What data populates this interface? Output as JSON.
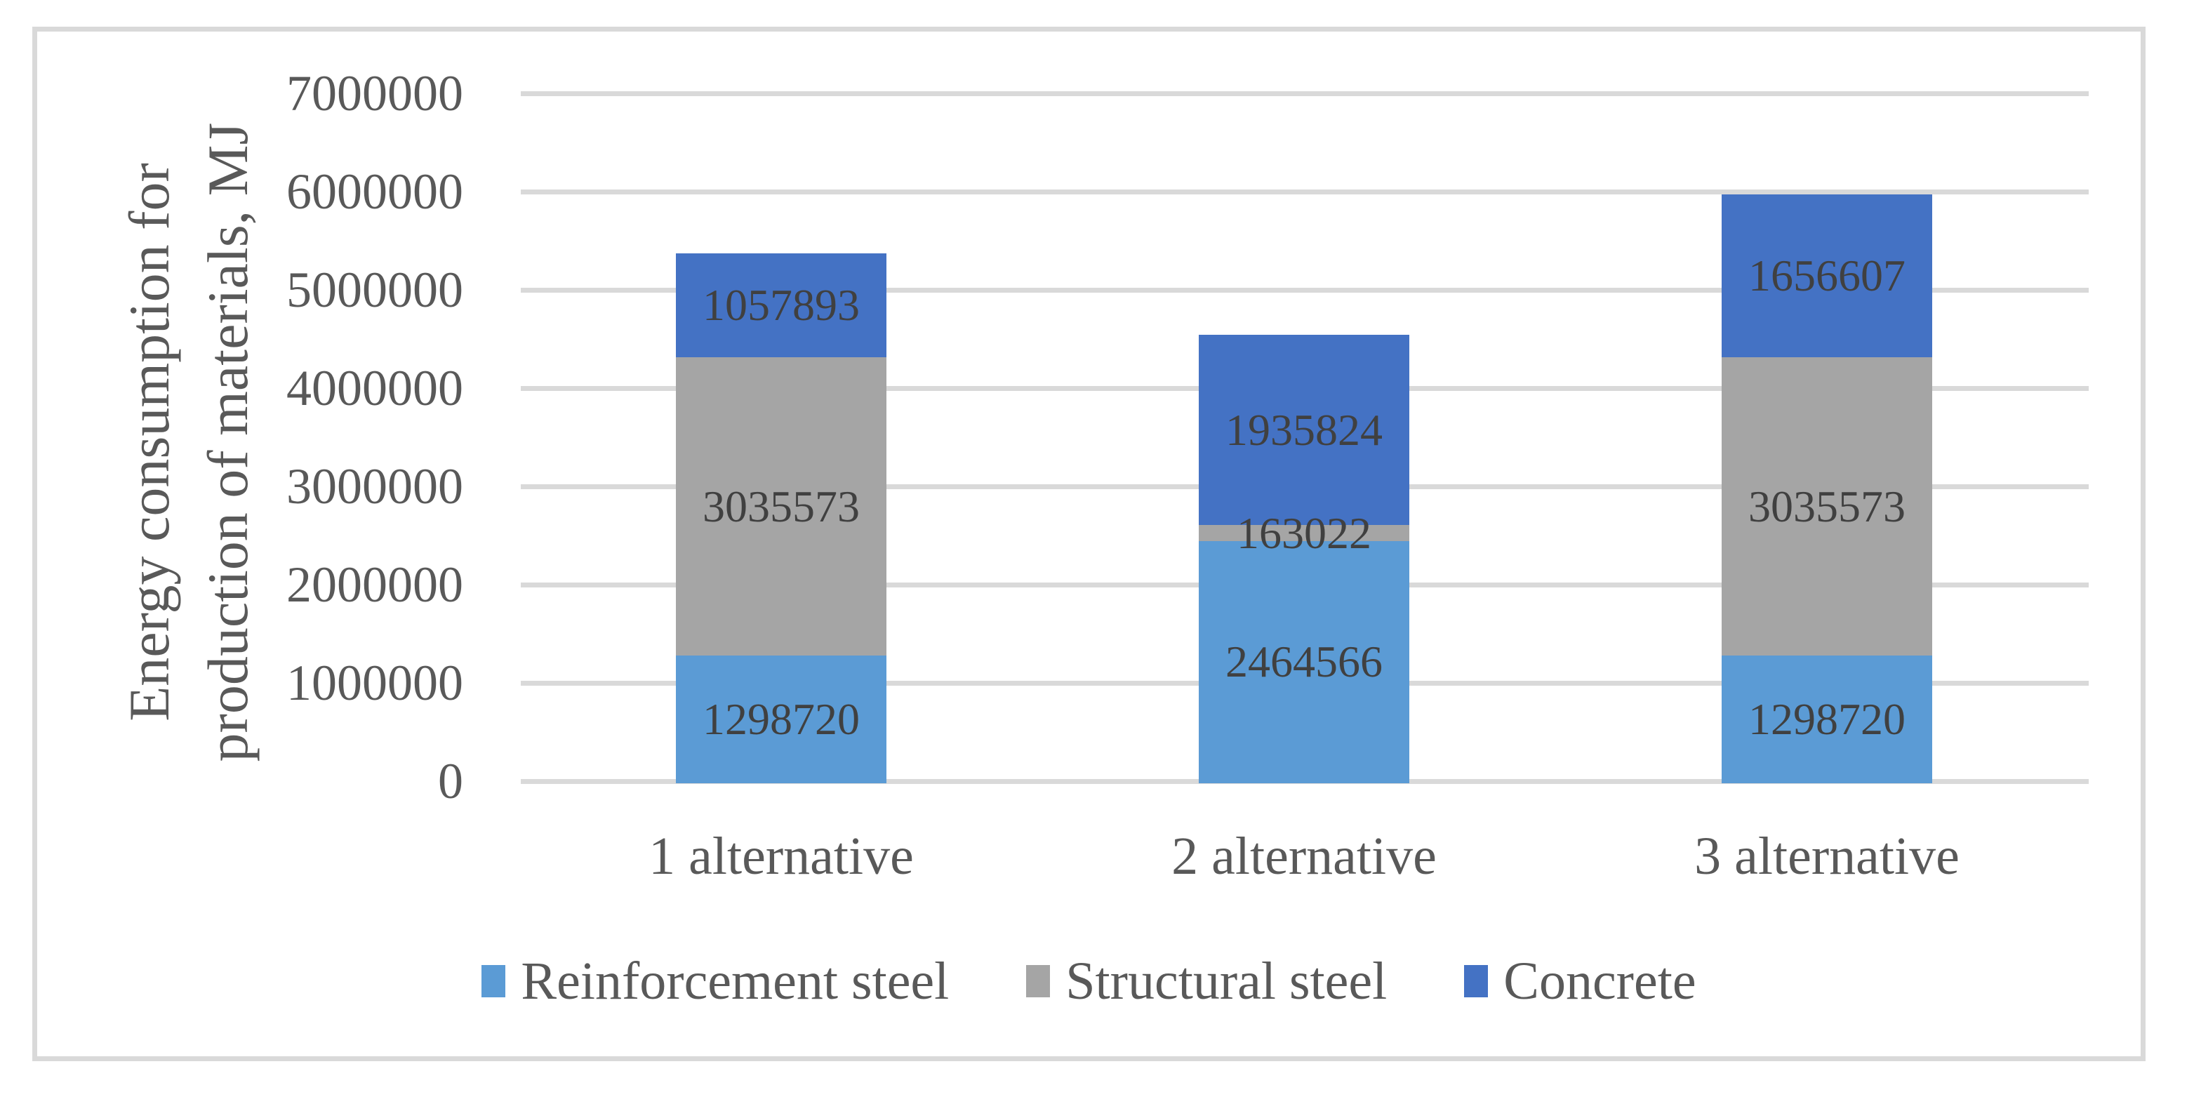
{
  "figure": {
    "border_color": "#D9D9D9",
    "background": "#ffffff"
  },
  "chart_data": {
    "type": "bar",
    "stacked": true,
    "title": "",
    "ylabel": "Energy consumption for production of materials, MJ",
    "ylabel_lines": [
      "Energy consumption for",
      "production of materials, MJ"
    ],
    "xlabel": "",
    "categories": [
      "1 alternative",
      "2 alternative",
      "3 alternative"
    ],
    "series": [
      {
        "name": "Reinforcement steel",
        "color": "#5B9BD5",
        "values": [
          1298720,
          2464566,
          1298720
        ]
      },
      {
        "name": "Structural steel",
        "color": "#A5A5A5",
        "values": [
          3035573,
          163022,
          3035573
        ]
      },
      {
        "name": "Concrete",
        "color": "#4472C4",
        "values": [
          1057893,
          1935824,
          1656607
        ]
      }
    ],
    "data_labels_shown": true,
    "ylim": [
      0,
      7000000
    ],
    "ytick_step": 1000000,
    "yticks": [
      "0",
      "1000000",
      "2000000",
      "3000000",
      "4000000",
      "5000000",
      "6000000",
      "7000000"
    ],
    "grid": true,
    "gridline_color": "#D9D9D9",
    "axis_text_color": "#595959",
    "data_label_color": "#404040",
    "legend_position": "bottom"
  }
}
